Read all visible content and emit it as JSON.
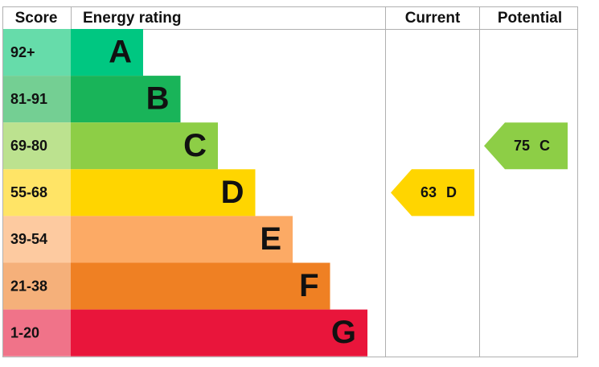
{
  "header": {
    "score": "Score",
    "rating": "Energy rating",
    "current": "Current",
    "potential": "Potential"
  },
  "bands": [
    {
      "score": "92+",
      "letter": "A",
      "color": "#00c781",
      "score_color": "#66dcaa"
    },
    {
      "score": "81-91",
      "letter": "B",
      "color": "#19b459",
      "score_color": "#74cf93"
    },
    {
      "score": "69-80",
      "letter": "C",
      "color": "#8dce46",
      "score_color": "#bce28f"
    },
    {
      "score": "55-68",
      "letter": "D",
      "color": "#ffd500",
      "score_color": "#ffe466"
    },
    {
      "score": "39-54",
      "letter": "E",
      "color": "#fcaa65",
      "score_color": "#fdcaa0"
    },
    {
      "score": "21-38",
      "letter": "F",
      "color": "#ef8023",
      "score_color": "#f5b07a"
    },
    {
      "score": "1-20",
      "letter": "G",
      "color": "#e9153b",
      "score_color": "#f07389"
    }
  ],
  "current": {
    "value": "63",
    "letter": "D"
  },
  "potential": {
    "value": "75",
    "letter": "C"
  }
}
